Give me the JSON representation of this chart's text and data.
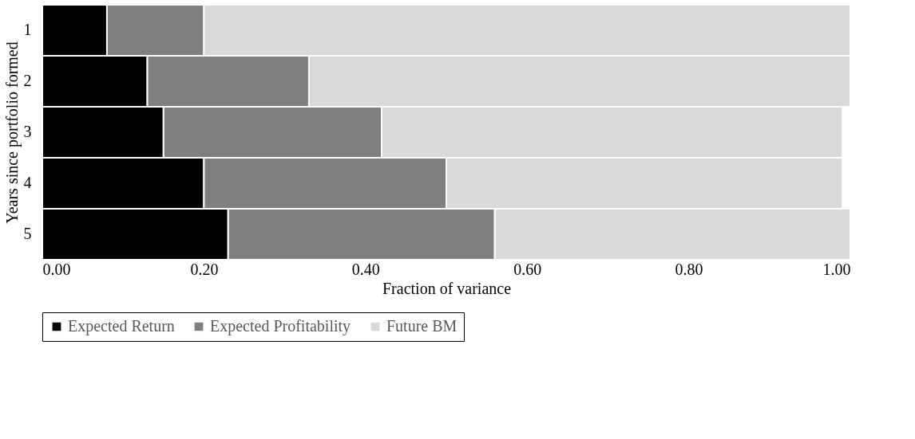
{
  "chart_data": {
    "type": "bar",
    "orientation": "horizontal",
    "stacked": true,
    "categories": [
      "1",
      "2",
      "3",
      "4",
      "5"
    ],
    "series": [
      {
        "name": "Expected Return",
        "color": "#000000",
        "values": [
          0.08,
          0.13,
          0.15,
          0.2,
          0.23
        ]
      },
      {
        "name": "Expected Profitability",
        "color": "#7f7f7f",
        "values": [
          0.12,
          0.2,
          0.27,
          0.3,
          0.33
        ]
      },
      {
        "name": "Future BM",
        "color": "#d9d9d9",
        "values": [
          0.8,
          0.67,
          0.57,
          0.49,
          0.44
        ]
      }
    ],
    "xlabel": "Fraction of variance",
    "ylabel": "Years since portfolio formed",
    "xlim": [
      0,
      1
    ],
    "xticks": [
      {
        "value": 0,
        "label": "0.00"
      },
      {
        "value": 0.2,
        "label": "0.20"
      },
      {
        "value": 0.4,
        "label": "0.40"
      },
      {
        "value": 0.6,
        "label": "0.60"
      },
      {
        "value": 0.8,
        "label": "0.80"
      },
      {
        "value": 1,
        "label": "1.00"
      }
    ],
    "grid": false,
    "legend": "bottom"
  }
}
